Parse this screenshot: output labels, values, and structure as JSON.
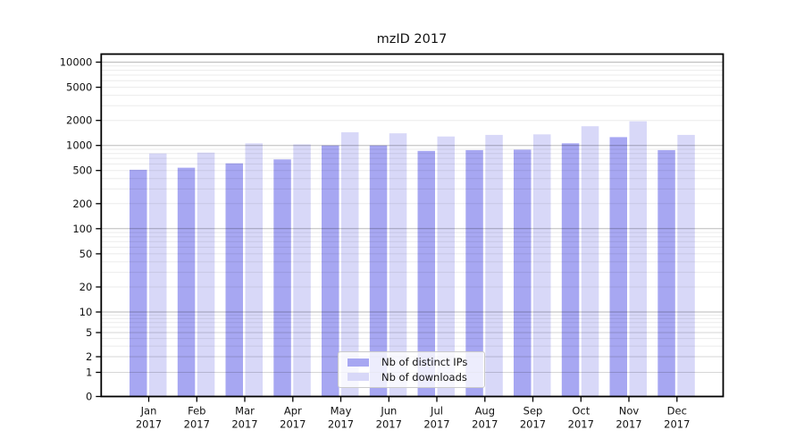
{
  "chart_data": {
    "type": "bar",
    "title": "mzID 2017",
    "categories": [
      "Jan",
      "Feb",
      "Mar",
      "Apr",
      "May",
      "Jun",
      "Jul",
      "Aug",
      "Sep",
      "Oct",
      "Nov",
      "Dec"
    ],
    "x_tick_second_line": "2017",
    "series": [
      {
        "name": "Nb of distinct IPs",
        "color": "#a7a7f2",
        "values": [
          510,
          540,
          610,
          680,
          1000,
          1000,
          860,
          880,
          890,
          1060,
          1260,
          880
        ]
      },
      {
        "name": "Nb of downloads",
        "color": "#d8d8f8",
        "values": [
          800,
          820,
          1060,
          1030,
          1440,
          1400,
          1280,
          1340,
          1360,
          1700,
          1950,
          1340
        ]
      }
    ],
    "ylabel": "",
    "xlabel": "",
    "yscale": "symlog",
    "ytick_values": [
      10000,
      5000,
      2000,
      1000,
      500,
      200,
      100,
      50,
      20,
      10,
      5,
      2,
      1,
      0
    ],
    "ylim": [
      0,
      14000
    ],
    "grid": true,
    "legend_position": "lower center",
    "colors": {
      "background": "#ffffff",
      "axis": "#000000",
      "text": "#121212",
      "grid_major": "rgba(0,0,0,0.27)",
      "grid_mid": "rgba(0,0,0,0.16)",
      "grid_minor": "rgba(0,0,0,0.08)"
    }
  }
}
